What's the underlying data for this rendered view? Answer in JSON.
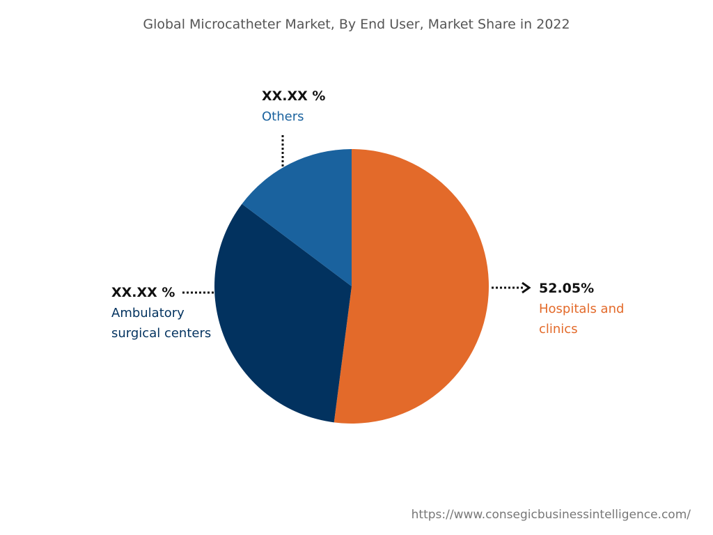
{
  "chart_data": {
    "type": "pie",
    "title": "Global Microcatheter Market, By End User, Market Share in 2022",
    "slices": [
      {
        "name": "Hospitals and clinics",
        "value": 52.05,
        "label": "52.05%",
        "color": "#E36A2A"
      },
      {
        "name": "Ambulatory surgical centers",
        "value": 33.2,
        "label": "XX.XX %",
        "color": "#02325F"
      },
      {
        "name": "Others",
        "value": 14.75,
        "label": "XX.XX %",
        "color": "#1A629E"
      }
    ],
    "start_angle": "top, clockwise",
    "legend": "none"
  },
  "source_url": "https://www.consegicbusinessintelligence.com/"
}
